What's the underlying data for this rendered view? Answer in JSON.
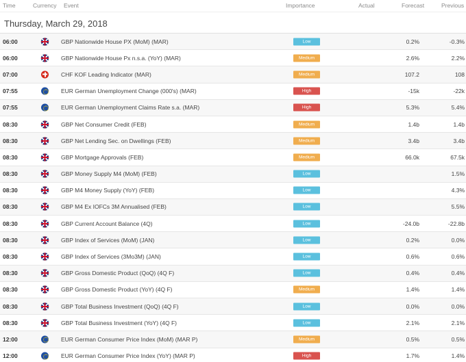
{
  "columns": {
    "time": "Time",
    "currency": "Currency",
    "event": "Event",
    "importance": "Importance",
    "actual": "Actual",
    "forecast": "Forecast",
    "previous": "Previous"
  },
  "date_title": "Thursday, March 29, 2018",
  "colors": {
    "low": "#5bc0de",
    "medium": "#f0ad4e",
    "high": "#d9534f"
  },
  "rows": [
    {
      "time": "06:00",
      "flag": "gbp-flag-icon",
      "event": "GBP Nationwide House PX (MoM) (MAR)",
      "importance": "Low",
      "actual": "",
      "forecast": "0.2%",
      "previous": "-0.3%"
    },
    {
      "time": "06:00",
      "flag": "gbp-flag-icon",
      "event": "GBP Nationwide House Px n.s.a. (YoY) (MAR)",
      "importance": "Medium",
      "actual": "",
      "forecast": "2.6%",
      "previous": "2.2%"
    },
    {
      "time": "07:00",
      "flag": "chf-flag-icon",
      "event": "CHF KOF Leading Indicator (MAR)",
      "importance": "Medium",
      "actual": "",
      "forecast": "107.2",
      "previous": "108"
    },
    {
      "time": "07:55",
      "flag": "eur-flag-icon",
      "event": "EUR German Unemployment Change (000's) (MAR)",
      "importance": "High",
      "actual": "",
      "forecast": "-15k",
      "previous": "-22k"
    },
    {
      "time": "07:55",
      "flag": "eur-flag-icon",
      "event": "EUR German Unemployment Claims Rate s.a. (MAR)",
      "importance": "High",
      "actual": "",
      "forecast": "5.3%",
      "previous": "5.4%"
    },
    {
      "time": "08:30",
      "flag": "gbp-flag-icon",
      "event": "GBP Net Consumer Credit (FEB)",
      "importance": "Medium",
      "actual": "",
      "forecast": "1.4b",
      "previous": "1.4b"
    },
    {
      "time": "08:30",
      "flag": "gbp-flag-icon",
      "event": "GBP Net Lending Sec. on Dwellings (FEB)",
      "importance": "Medium",
      "actual": "",
      "forecast": "3.4b",
      "previous": "3.4b"
    },
    {
      "time": "08:30",
      "flag": "gbp-flag-icon",
      "event": "GBP Mortgage Approvals (FEB)",
      "importance": "Medium",
      "actual": "",
      "forecast": "66.0k",
      "previous": "67.5k"
    },
    {
      "time": "08:30",
      "flag": "gbp-flag-icon",
      "event": "GBP Money Supply M4 (MoM) (FEB)",
      "importance": "Low",
      "actual": "",
      "forecast": "",
      "previous": "1.5%"
    },
    {
      "time": "08:30",
      "flag": "gbp-flag-icon",
      "event": "GBP M4 Money Supply (YoY) (FEB)",
      "importance": "Low",
      "actual": "",
      "forecast": "",
      "previous": "4.3%"
    },
    {
      "time": "08:30",
      "flag": "gbp-flag-icon",
      "event": "GBP M4 Ex IOFCs 3M Annualised (FEB)",
      "importance": "Low",
      "actual": "",
      "forecast": "",
      "previous": "5.5%"
    },
    {
      "time": "08:30",
      "flag": "gbp-flag-icon",
      "event": "GBP Current Account Balance (4Q)",
      "importance": "Low",
      "actual": "",
      "forecast": "-24.0b",
      "previous": "-22.8b"
    },
    {
      "time": "08:30",
      "flag": "gbp-flag-icon",
      "event": "GBP Index of Services (MoM) (JAN)",
      "importance": "Low",
      "actual": "",
      "forecast": "0.2%",
      "previous": "0.0%"
    },
    {
      "time": "08:30",
      "flag": "gbp-flag-icon",
      "event": "GBP Index of Services (3Mo3M) (JAN)",
      "importance": "Low",
      "actual": "",
      "forecast": "0.6%",
      "previous": "0.6%"
    },
    {
      "time": "08:30",
      "flag": "gbp-flag-icon",
      "event": "GBP Gross Domestic Product (QoQ) (4Q F)",
      "importance": "Low",
      "actual": "",
      "forecast": "0.4%",
      "previous": "0.4%"
    },
    {
      "time": "08:30",
      "flag": "gbp-flag-icon",
      "event": "GBP Gross Domestic Product (YoY) (4Q F)",
      "importance": "Medium",
      "actual": "",
      "forecast": "1.4%",
      "previous": "1.4%"
    },
    {
      "time": "08:30",
      "flag": "gbp-flag-icon",
      "event": "GBP Total Business Investment (QoQ) (4Q F)",
      "importance": "Low",
      "actual": "",
      "forecast": "0.0%",
      "previous": "0.0%"
    },
    {
      "time": "08:30",
      "flag": "gbp-flag-icon",
      "event": "GBP Total Business Investment (YoY) (4Q F)",
      "importance": "Low",
      "actual": "",
      "forecast": "2.1%",
      "previous": "2.1%"
    },
    {
      "time": "12:00",
      "flag": "eur-flag-icon",
      "event": "EUR German Consumer Price Index (MoM) (MAR P)",
      "importance": "Medium",
      "actual": "",
      "forecast": "0.5%",
      "previous": "0.5%"
    },
    {
      "time": "12:00",
      "flag": "eur-flag-icon",
      "event": "EUR German Consumer Price Index (YoY) (MAR P)",
      "importance": "High",
      "actual": "",
      "forecast": "1.7%",
      "previous": "1.4%"
    }
  ]
}
